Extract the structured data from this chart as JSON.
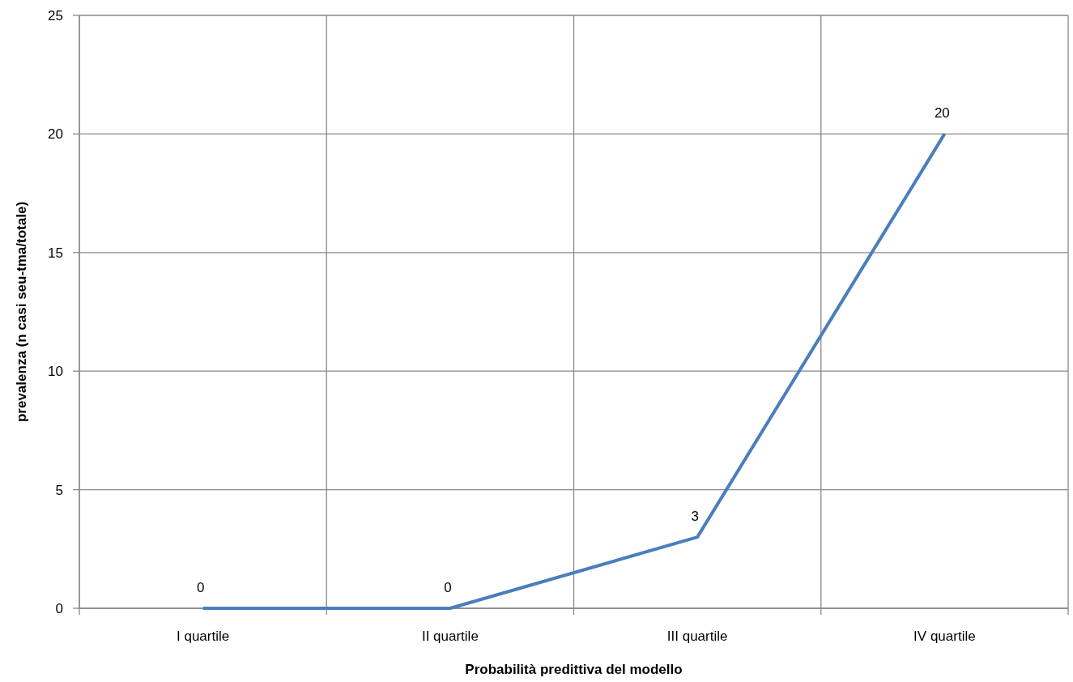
{
  "chart_data": {
    "type": "line",
    "xlabel": "Probabilità predittiva del modello",
    "ylabel": "prevalenza (n casi seu-tma/totale)",
    "categories": [
      "I quartile",
      "II quartile",
      "III quartile",
      "IV quartile"
    ],
    "series": [
      {
        "color": "#4a7ebb",
        "values": [
          0,
          0,
          3,
          20
        ]
      }
    ],
    "ylim": [
      0,
      25
    ],
    "yticks": [
      0,
      5,
      10,
      15,
      20,
      25
    ],
    "grid": true,
    "data_labels": true
  }
}
